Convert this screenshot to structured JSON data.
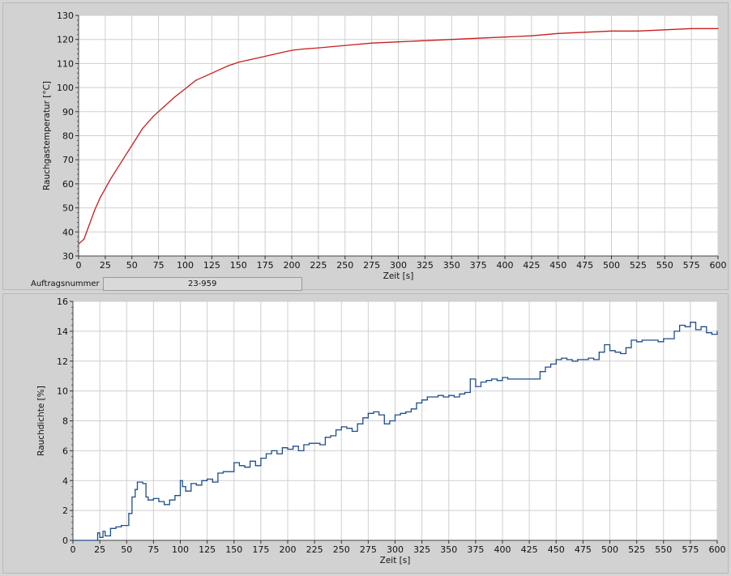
{
  "order": {
    "label": "Auftragsnummer",
    "value": "23-959"
  },
  "chart_data": [
    {
      "type": "line",
      "ylabel": "Rauchgastemperatur [°C]",
      "xlabel": "Zeit [s]",
      "xlim": [
        0,
        600
      ],
      "ylim": [
        30,
        130
      ],
      "xticks": [
        0,
        25,
        50,
        75,
        100,
        125,
        150,
        175,
        200,
        225,
        250,
        275,
        300,
        325,
        350,
        375,
        400,
        425,
        450,
        475,
        500,
        525,
        550,
        575,
        600
      ],
      "yticks": [
        30,
        40,
        50,
        60,
        70,
        80,
        90,
        100,
        110,
        120,
        130
      ],
      "grid": true,
      "color": "#c81e1e",
      "series": [
        {
          "x": [
            0,
            5,
            10,
            15,
            20,
            25,
            30,
            40,
            50,
            60,
            70,
            80,
            90,
            100,
            110,
            120,
            130,
            140,
            150,
            160,
            170,
            180,
            190,
            200,
            210,
            225,
            250,
            275,
            300,
            325,
            350,
            375,
            400,
            425,
            450,
            475,
            500,
            525,
            550,
            575,
            600
          ],
          "y": [
            35,
            37,
            43,
            49,
            54,
            58,
            62,
            69,
            76,
            83,
            88,
            92,
            96,
            99.5,
            103,
            105,
            107,
            109,
            110.5,
            111.5,
            112.5,
            113.5,
            114.5,
            115.5,
            116,
            116.5,
            117.5,
            118.5,
            119,
            119.5,
            120,
            120.5,
            121,
            121.5,
            122.5,
            123,
            123.5,
            123.5,
            124,
            124.5,
            124.5
          ]
        }
      ]
    },
    {
      "type": "line",
      "ylabel": "Rauchdichte [%]",
      "xlabel": "Zeit [s]",
      "xlim": [
        0,
        600
      ],
      "ylim": [
        0,
        16
      ],
      "xticks": [
        0,
        25,
        50,
        75,
        100,
        125,
        150,
        175,
        200,
        225,
        250,
        275,
        300,
        325,
        350,
        375,
        400,
        425,
        450,
        475,
        500,
        525,
        550,
        575,
        600
      ],
      "yticks": [
        0,
        2,
        4,
        6,
        8,
        10,
        12,
        14,
        16
      ],
      "grid": true,
      "color": "#1f4e8c",
      "series": [
        {
          "x": [
            0,
            22,
            23,
            25,
            28,
            30,
            35,
            40,
            45,
            50,
            52,
            55,
            58,
            60,
            65,
            68,
            70,
            75,
            80,
            85,
            90,
            95,
            100,
            102,
            105,
            110,
            115,
            120,
            125,
            130,
            135,
            140,
            145,
            150,
            155,
            160,
            165,
            170,
            175,
            180,
            185,
            190,
            195,
            200,
            205,
            210,
            215,
            220,
            225,
            230,
            235,
            240,
            245,
            250,
            255,
            260,
            265,
            270,
            275,
            280,
            285,
            290,
            295,
            300,
            305,
            310,
            315,
            320,
            325,
            330,
            335,
            340,
            345,
            350,
            355,
            360,
            365,
            370,
            375,
            380,
            385,
            390,
            395,
            400,
            405,
            410,
            420,
            430,
            435,
            440,
            445,
            450,
            455,
            460,
            465,
            470,
            475,
            480,
            485,
            490,
            495,
            500,
            505,
            510,
            515,
            520,
            525,
            530,
            535,
            540,
            545,
            550,
            555,
            560,
            565,
            570,
            575,
            580,
            585,
            590,
            595,
            600
          ],
          "y": [
            0,
            0,
            0.5,
            0.2,
            0.6,
            0.3,
            0.8,
            0.9,
            1.0,
            1.0,
            1.8,
            2.9,
            3.4,
            3.9,
            3.8,
            2.9,
            2.7,
            2.8,
            2.6,
            2.4,
            2.7,
            3.0,
            4.0,
            3.6,
            3.3,
            3.8,
            3.7,
            4.0,
            4.1,
            3.9,
            4.5,
            4.6,
            4.6,
            5.2,
            5.0,
            4.9,
            5.3,
            5.0,
            5.5,
            5.8,
            6.0,
            5.8,
            6.2,
            6.1,
            6.3,
            6.0,
            6.4,
            6.5,
            6.5,
            6.4,
            6.9,
            7.0,
            7.4,
            7.6,
            7.5,
            7.3,
            7.8,
            8.2,
            8.5,
            8.6,
            8.4,
            7.8,
            8.0,
            8.4,
            8.5,
            8.6,
            8.8,
            9.2,
            9.4,
            9.6,
            9.6,
            9.7,
            9.6,
            9.7,
            9.6,
            9.8,
            9.9,
            10.8,
            10.3,
            10.6,
            10.7,
            10.8,
            10.7,
            10.9,
            10.8,
            10.8,
            10.8,
            10.8,
            11.3,
            11.6,
            11.8,
            12.1,
            12.2,
            12.1,
            12.0,
            12.1,
            12.1,
            12.2,
            12.1,
            12.6,
            13.1,
            12.7,
            12.6,
            12.5,
            12.9,
            13.4,
            13.3,
            13.4,
            13.4,
            13.4,
            13.3,
            13.5,
            13.5,
            14.0,
            14.4,
            14.3,
            14.6,
            14.1,
            14.3,
            13.9,
            13.8,
            14.0
          ]
        }
      ]
    }
  ]
}
